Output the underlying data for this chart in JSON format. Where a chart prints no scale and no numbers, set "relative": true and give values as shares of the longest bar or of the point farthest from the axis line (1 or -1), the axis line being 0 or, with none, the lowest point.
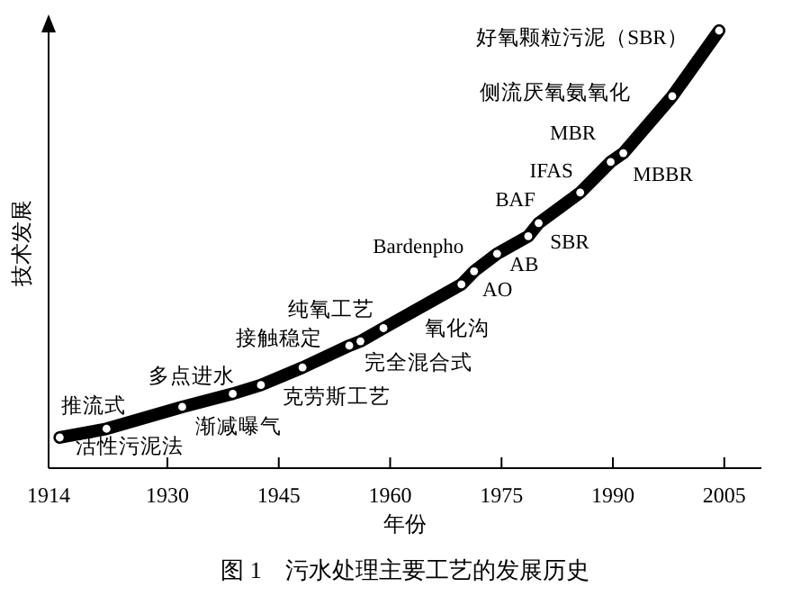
{
  "chart_data": {
    "type": "line",
    "relative": true,
    "title": "图 1　污水处理主要工艺的发展历史",
    "xlabel": "年份",
    "ylabel": "技术发展",
    "xlim": [
      1914,
      2010
    ],
    "xticks": [
      1914,
      1930,
      1945,
      1960,
      1975,
      1990,
      2005
    ],
    "marker": "circle",
    "line_style": "solid",
    "series": [
      {
        "color": "#000000",
        "x": [
          1915.5,
          1921.8,
          1932,
          1938.8,
          1942.6,
          1948.2,
          1954.5,
          1956,
          1959.1,
          1969.6,
          1971.3,
          1974.4,
          1978.6,
          1980,
          1985.6,
          1989.7,
          1991.4,
          1998,
          2004.3
        ],
        "values": [
          0.07,
          0.09,
          0.14,
          0.17,
          0.19,
          0.23,
          0.28,
          0.29,
          0.32,
          0.42,
          0.45,
          0.49,
          0.53,
          0.56,
          0.63,
          0.7,
          0.72,
          0.85,
          1
        ]
      }
    ],
    "annotations": [
      {
        "text": "推流式",
        "x": 1921.8,
        "y": 0.09
      },
      {
        "text": "活性污泥法",
        "x": 1915.5,
        "y": 0.07
      },
      {
        "text": "多点进水",
        "x": 1932,
        "y": 0.14
      },
      {
        "text": "渐减曝气",
        "x": 1938.8,
        "y": 0.17
      },
      {
        "text": "克劳斯工艺",
        "x": 1948.2,
        "y": 0.23
      },
      {
        "text": "接触稳定",
        "x": 1942.6,
        "y": 0.19
      },
      {
        "text": "纯氧工艺",
        "x": 1954.5,
        "y": 0.28
      },
      {
        "text": "完全混合式",
        "x": 1956,
        "y": 0.29
      },
      {
        "text": "氧化沟",
        "x": 1959.1,
        "y": 0.32
      },
      {
        "text": "AO",
        "x": 1971.3,
        "y": 0.45
      },
      {
        "text": "AB",
        "x": 1974.4,
        "y": 0.49
      },
      {
        "text": "SBR",
        "x": 1978.6,
        "y": 0.53
      },
      {
        "text": "Bardenpho",
        "x": 1969.6,
        "y": 0.42
      },
      {
        "text": "BAF",
        "x": 1980,
        "y": 0.56
      },
      {
        "text": "IFAS",
        "x": 1985.6,
        "y": 0.63
      },
      {
        "text": "MBR",
        "x": 1989.7,
        "y": 0.7
      },
      {
        "text": "MBBR",
        "x": 1991.4,
        "y": 0.72
      },
      {
        "text": "侧流厌氧氨氧化",
        "x": 1998,
        "y": 0.85
      },
      {
        "text": "好氧颗粒污泥（SBR）",
        "x": 2004.3,
        "y": 1
      }
    ]
  }
}
